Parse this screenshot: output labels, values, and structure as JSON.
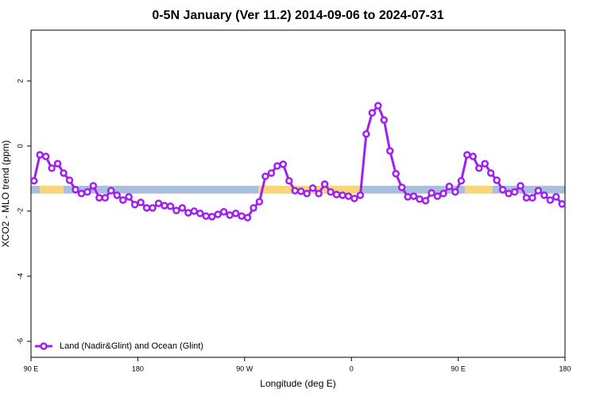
{
  "chart_data": {
    "type": "line",
    "title": "0-5N January (Ver 11.2)   2014-09-06 to 2024-07-31",
    "x_label": "Longitude (deg E)",
    "y_label": "XCO2 - MLO trend (ppm)",
    "x": [
      92.5,
      97.5,
      102.5,
      107.5,
      112.5,
      117.5,
      122.5,
      127.5,
      132.5,
      137.5,
      142.5,
      147.5,
      152.5,
      157.5,
      162.5,
      167.5,
      172.5,
      177.5,
      182.5,
      187.5,
      192.5,
      197.5,
      202.5,
      207.5,
      212.5,
      217.5,
      222.5,
      227.5,
      232.5,
      237.5,
      242.5,
      247.5,
      252.5,
      257.5,
      262.5,
      267.5,
      272.5,
      277.5,
      282.5,
      287.5,
      292.5,
      297.5,
      302.5,
      307.5,
      312.5,
      317.5,
      322.5,
      327.5,
      332.5,
      337.5,
      342.5,
      347.5,
      352.5,
      357.5,
      362.5,
      367.5,
      372.5,
      377.5,
      382.5,
      387.5,
      392.5,
      397.5,
      402.5,
      407.5,
      412.5,
      417.5,
      422.5,
      427.5,
      432.5,
      437.5,
      442.5,
      447.5,
      452.5,
      457.5,
      462.5,
      467.5,
      472.5,
      477.5,
      482.5,
      487.5,
      492.5,
      497.5,
      502.5,
      507.5,
      512.5,
      517.5,
      522.5,
      527.5,
      532.5,
      537.5
    ],
    "series": [
      {
        "name": "Land (Nadir&Glint) and Ocean (Glint)",
        "color": "#a020f0",
        "values": [
          -1.07,
          -0.27,
          -0.32,
          -0.68,
          -0.54,
          -0.83,
          -1.05,
          -1.34,
          -1.46,
          -1.41,
          -1.22,
          -1.59,
          -1.59,
          -1.37,
          -1.51,
          -1.66,
          -1.56,
          -1.8,
          -1.73,
          -1.9,
          -1.9,
          -1.76,
          -1.83,
          -1.85,
          -1.98,
          -1.9,
          -2.05,
          -2.0,
          -2.07,
          -2.15,
          -2.17,
          -2.1,
          -2.02,
          -2.12,
          -2.07,
          -2.15,
          -2.2,
          -1.9,
          -1.71,
          -0.93,
          -0.83,
          -0.61,
          -0.56,
          -1.07,
          -1.37,
          -1.39,
          -1.46,
          -1.29,
          -1.46,
          -1.17,
          -1.41,
          -1.49,
          -1.51,
          -1.54,
          -1.61,
          -1.51,
          0.37,
          1.02,
          1.24,
          0.8,
          -0.15,
          -0.85,
          -1.27,
          -1.56,
          -1.54,
          -1.63,
          -1.68,
          -1.44,
          -1.54,
          -1.46,
          -1.24,
          -1.41,
          -1.07,
          -0.27,
          -0.32,
          -0.68,
          -0.54,
          -0.83,
          -1.05,
          -1.34,
          -1.46,
          -1.41,
          -1.22,
          -1.59,
          -1.59,
          -1.37,
          -1.51,
          -1.66,
          -1.56,
          -1.78
        ]
      }
    ],
    "surface_band": {
      "y": [
        -1.46,
        -1.22
      ],
      "ocean_color": "#a9bfdb",
      "land_color": "#f9d67a",
      "land_segments": [
        [
          97.4,
          117.5
        ],
        [
          281.5,
          368.6
        ],
        [
          455.6,
          479.0
        ]
      ]
    },
    "xlim": [
      90,
      540
    ],
    "xticks": [
      {
        "value": 90,
        "label": "90 E"
      },
      {
        "value": 180,
        "label": "180"
      },
      {
        "value": 270,
        "label": "90 W"
      },
      {
        "value": 360,
        "label": "0"
      },
      {
        "value": 450,
        "label": "90 E"
      },
      {
        "value": 540,
        "label": "180"
      }
    ],
    "ylim": [
      -6.49,
      3.56
    ],
    "yticks": [
      2,
      0,
      -2,
      -4,
      -6
    ],
    "legend": "bottom-left"
  }
}
